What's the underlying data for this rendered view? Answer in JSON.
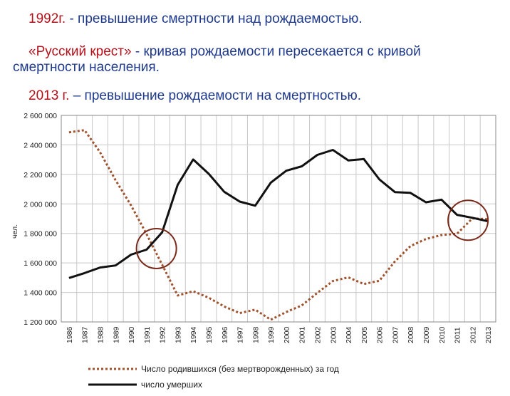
{
  "captions": {
    "line1_year": "1992г.",
    "line1_text": " - превышение смертности над рождаемостью.",
    "line2_quote": "«Русский крест»",
    "line2_text": " - кривая рождаемости пересекается с кривой",
    "line2_cont": "смертности населения.",
    "line3_year": "2013 г.",
    "line3_text": " – превышение рождаемости на смертностью."
  },
  "chart_data": {
    "type": "line",
    "ylabel": "чел.",
    "xlabel": "",
    "ylim": [
      1200000,
      2600000
    ],
    "yticks": [
      1200000,
      1400000,
      1600000,
      1800000,
      2000000,
      2200000,
      2400000,
      2600000
    ],
    "ytick_labels": [
      "1 200 000",
      "1 400 000",
      "1 600 000",
      "1 800 000",
      "2 000 000",
      "2 200 000",
      "2 400 000",
      "2 600 000"
    ],
    "grid": true,
    "legend_position": "bottom",
    "x": [
      "1986",
      "1987",
      "1988",
      "1989",
      "1990",
      "1991",
      "1992",
      "1993",
      "1994",
      "1995",
      "1996",
      "1997",
      "1998",
      "1999",
      "2000",
      "2001",
      "2002",
      "2003",
      "2004",
      "2005",
      "2006",
      "2007",
      "2008",
      "2009",
      "2010",
      "2011",
      "2012",
      "2013"
    ],
    "series": [
      {
        "name": "Число родившихся (без мертворожденных) за год",
        "style": "dotted",
        "color": "#a0522d",
        "values": [
          2485000,
          2500000,
          2350000,
          2160000,
          1990000,
          1795000,
          1588000,
          1379000,
          1408000,
          1364000,
          1305000,
          1260000,
          1283000,
          1215000,
          1267000,
          1312000,
          1397000,
          1477000,
          1502000,
          1457000,
          1479000,
          1610000,
          1714000,
          1762000,
          1789000,
          1797000,
          1902000,
          1896000
        ]
      },
      {
        "name": "число умерших",
        "style": "solid",
        "color": "#111111",
        "values": [
          1498000,
          1531000,
          1569000,
          1583000,
          1656000,
          1690000,
          1807000,
          2129000,
          2301000,
          2204000,
          2082000,
          2016000,
          1988000,
          2144000,
          2225000,
          2255000,
          2332000,
          2366000,
          2295000,
          2304000,
          2166000,
          2080000,
          2075000,
          2011000,
          2029000,
          1926000,
          1906000,
          1882000
        ]
      }
    ],
    "circles_at": [
      "1992",
      "2013"
    ]
  }
}
